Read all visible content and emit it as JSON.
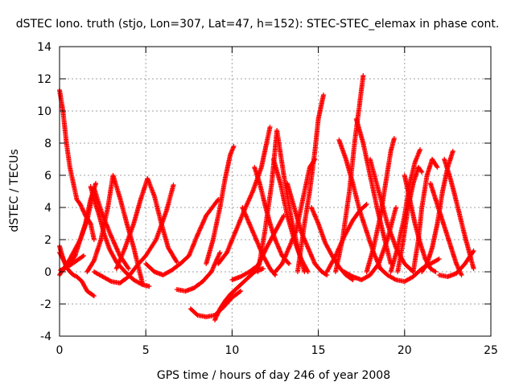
{
  "chart_data": {
    "type": "scatter",
    "title": "dSTEC Iono. truth (stjo, Lon=307, Lat=47, h=152): STEC-STEC_elemax in phase cont.",
    "xlabel": "GPS time / hours of day 246 of year 2008",
    "ylabel": "dSTEC  / TECUs",
    "xlim": [
      0,
      25
    ],
    "ylim": [
      -4,
      14
    ],
    "x_ticks": [
      0,
      5,
      10,
      15,
      20,
      25
    ],
    "y_ticks": [
      -4,
      -2,
      0,
      2,
      4,
      6,
      8,
      10,
      12,
      14
    ],
    "grid": true,
    "legend": "none",
    "marker": "plus",
    "color": "#ff0000",
    "series": [
      {
        "x": [
          0.0,
          0.1,
          0.25,
          0.4,
          0.6,
          0.8,
          1.0,
          1.3,
          1.6,
          2.0
        ],
        "y": [
          1.6,
          1.2,
          0.7,
          0.3,
          0.0,
          -0.2,
          -0.3,
          -0.6,
          -1.2,
          -1.5
        ]
      },
      {
        "x": [
          0.0,
          0.2,
          0.4,
          0.6,
          0.8,
          1.0,
          1.2,
          1.5,
          1.8,
          2.0
        ],
        "y": [
          11.3,
          10.0,
          8.0,
          6.5,
          5.5,
          4.5,
          4.2,
          3.5,
          3.0,
          2.0
        ]
      },
      {
        "x": [
          0.05,
          0.3,
          0.6,
          0.9,
          1.2,
          1.5,
          1.8,
          2.1
        ],
        "y": [
          0.1,
          0.2,
          0.5,
          1.0,
          2.0,
          3.0,
          4.5,
          5.5
        ]
      },
      {
        "x": [
          0.0,
          0.3,
          0.6,
          1.0,
          1.4
        ],
        "y": [
          1.2,
          0.6,
          0.4,
          0.7,
          1.0
        ]
      },
      {
        "x": [
          0.0,
          0.6,
          1.2,
          1.6,
          2.0,
          2.5,
          3.0,
          3.5,
          4.0
        ],
        "y": [
          -0.2,
          0.8,
          2.0,
          3.2,
          5.2,
          3.5,
          2.2,
          1.0,
          0.2
        ]
      },
      {
        "x": [
          1.8,
          2.0,
          2.3,
          2.6,
          2.9,
          3.3,
          3.8,
          4.3,
          4.8,
          5.2
        ],
        "y": [
          5.3,
          4.5,
          3.5,
          2.3,
          1.4,
          0.6,
          0.0,
          -0.5,
          -0.8,
          -0.9
        ]
      },
      {
        "x": [
          1.6,
          2.0,
          2.4,
          2.8,
          3.1,
          3.5,
          3.9,
          4.3,
          4.8
        ],
        "y": [
          0.0,
          0.7,
          2.0,
          4.0,
          6.0,
          4.6,
          3.0,
          1.5,
          -0.7
        ]
      },
      {
        "x": [
          2.0,
          2.5,
          3.0,
          3.5,
          4.0,
          4.5,
          5.0,
          5.6,
          6.2,
          6.6
        ],
        "y": [
          0.0,
          -0.3,
          -0.6,
          -0.7,
          -0.3,
          0.4,
          1.0,
          2.0,
          3.8,
          5.4
        ]
      },
      {
        "x": [
          3.3,
          3.8,
          4.3,
          4.7,
          5.1,
          5.5,
          5.9,
          6.3,
          6.8
        ],
        "y": [
          0.2,
          1.5,
          3.0,
          4.5,
          5.8,
          4.7,
          3.0,
          1.5,
          0.6
        ]
      },
      {
        "x": [
          5.0,
          5.5,
          6.0,
          6.5,
          7.0,
          7.5,
          8.0,
          8.5,
          9.2
        ],
        "y": [
          0.5,
          0.0,
          -0.2,
          0.1,
          0.5,
          1.0,
          2.3,
          3.5,
          4.5
        ]
      },
      {
        "x": [
          6.8,
          7.3,
          7.8,
          8.3,
          8.8,
          9.3
        ],
        "y": [
          -1.1,
          -1.2,
          -1.0,
          -0.6,
          0.0,
          1.2
        ]
      },
      {
        "x": [
          7.6,
          8.0,
          8.5,
          9.0,
          9.5,
          10.0,
          10.5
        ],
        "y": [
          -2.3,
          -2.7,
          -2.8,
          -2.7,
          -2.2,
          -1.6,
          -1.2
        ]
      },
      {
        "x": [
          9.0,
          9.3,
          9.6,
          9.9,
          10.3,
          10.8,
          11.3,
          11.8
        ],
        "y": [
          -3.0,
          -2.3,
          -1.8,
          -1.4,
          -1.0,
          -0.5,
          0.0,
          0.2
        ]
      },
      {
        "x": [
          8.5,
          8.9,
          9.3,
          9.6,
          9.9,
          10.1
        ],
        "y": [
          0.5,
          2.0,
          4.0,
          5.8,
          7.3,
          7.8
        ]
      },
      {
        "x": [
          9.2,
          9.7,
          10.2,
          10.7,
          11.2,
          11.7,
          12.0,
          12.2
        ],
        "y": [
          0.5,
          1.2,
          2.5,
          3.8,
          5.0,
          6.5,
          8.0,
          9.0
        ]
      },
      {
        "x": [
          10.0,
          10.5,
          11.0,
          11.5,
          12.0,
          12.5,
          13.0
        ],
        "y": [
          -0.5,
          -0.3,
          0.0,
          0.4,
          1.5,
          2.5,
          3.5
        ]
      },
      {
        "x": [
          10.6,
          11.0,
          11.4,
          11.8,
          12.2,
          12.5
        ],
        "y": [
          4.0,
          3.0,
          2.0,
          1.0,
          0.2,
          -0.2
        ]
      },
      {
        "x": [
          11.3,
          11.6,
          11.9,
          12.2,
          12.5,
          12.9,
          13.3
        ],
        "y": [
          6.5,
          5.5,
          4.2,
          3.0,
          2.0,
          1.0,
          0.5
        ]
      },
      {
        "x": [
          11.5,
          11.9,
          12.3,
          12.6,
          13.0,
          13.4,
          13.8,
          14.2
        ],
        "y": [
          0.0,
          2.5,
          5.5,
          8.8,
          6.0,
          3.5,
          1.5,
          0.0
        ]
      },
      {
        "x": [
          12.4,
          12.8,
          13.2,
          13.6,
          14.0,
          14.4
        ],
        "y": [
          7.0,
          5.5,
          3.5,
          2.0,
          0.8,
          0.0
        ]
      },
      {
        "x": [
          12.5,
          12.9,
          13.3,
          13.7,
          14.1,
          14.5,
          14.8
        ],
        "y": [
          0.0,
          0.5,
          1.5,
          2.5,
          4.5,
          6.5,
          7.0
        ]
      },
      {
        "x": [
          13.2,
          13.6,
          14.0,
          14.4,
          14.8,
          15.2,
          15.5
        ],
        "y": [
          5.5,
          4.0,
          2.5,
          1.5,
          0.5,
          0.0,
          -0.2
        ]
      },
      {
        "x": [
          13.8,
          14.2,
          14.5,
          14.8,
          15.0,
          15.3
        ],
        "y": [
          0.0,
          3.0,
          5.0,
          7.5,
          9.5,
          11.0
        ]
      },
      {
        "x": [
          14.6,
          15.0,
          15.4,
          15.8,
          16.2,
          16.6,
          17.0
        ],
        "y": [
          4.0,
          3.0,
          1.8,
          1.0,
          0.3,
          -0.2,
          -0.5
        ]
      },
      {
        "x": [
          15.5,
          16.0,
          16.5,
          17.0,
          17.4,
          17.8
        ],
        "y": [
          0.0,
          1.0,
          2.2,
          3.2,
          3.8,
          4.2
        ]
      },
      {
        "x": [
          16.0,
          16.4,
          16.8,
          17.1,
          17.4,
          17.6
        ],
        "y": [
          0.0,
          2.0,
          5.0,
          8.0,
          10.5,
          12.2
        ]
      },
      {
        "x": [
          16.2,
          16.6,
          17.0,
          17.4,
          17.8,
          18.2,
          18.6
        ],
        "y": [
          8.2,
          7.0,
          5.5,
          3.8,
          2.5,
          1.2,
          0.2
        ]
      },
      {
        "x": [
          16.5,
          17.0,
          17.5,
          18.0,
          18.5,
          19.0,
          19.5
        ],
        "y": [
          0.0,
          -0.3,
          -0.5,
          -0.2,
          0.5,
          2.0,
          4.0
        ]
      },
      {
        "x": [
          17.2,
          17.6,
          18.0,
          18.4,
          18.8,
          19.2
        ],
        "y": [
          9.5,
          8.0,
          6.0,
          4.0,
          2.2,
          0.5
        ]
      },
      {
        "x": [
          17.8,
          18.2,
          18.6,
          18.9,
          19.2,
          19.4
        ],
        "y": [
          0.0,
          1.5,
          3.5,
          5.5,
          7.5,
          8.3
        ]
      },
      {
        "x": [
          18.0,
          18.5,
          19.0,
          19.5,
          20.0,
          20.5
        ],
        "y": [
          7.0,
          5.0,
          3.0,
          1.5,
          0.5,
          0.0
        ]
      },
      {
        "x": [
          18.5,
          19.0,
          19.5,
          20.0,
          20.5,
          21.0,
          21.5,
          22.0
        ],
        "y": [
          0.3,
          -0.2,
          -0.5,
          -0.6,
          -0.3,
          0.2,
          0.5,
          0.8
        ]
      },
      {
        "x": [
          19.2,
          19.6,
          20.0,
          20.3,
          20.6,
          20.9
        ],
        "y": [
          0.0,
          1.5,
          3.5,
          5.5,
          6.8,
          7.6
        ]
      },
      {
        "x": [
          19.6,
          19.9,
          20.2,
          20.5,
          20.8,
          21.0
        ],
        "y": [
          0.0,
          1.8,
          4.0,
          5.5,
          6.5,
          6.2
        ]
      },
      {
        "x": [
          20.0,
          20.3,
          20.6,
          20.9,
          21.2,
          21.5,
          21.8
        ],
        "y": [
          6.0,
          4.5,
          3.0,
          1.8,
          0.8,
          0.2,
          0.0
        ]
      },
      {
        "x": [
          20.5,
          20.8,
          21.0,
          21.3,
          21.6,
          21.9
        ],
        "y": [
          0.0,
          2.0,
          4.0,
          6.0,
          7.0,
          6.5
        ]
      },
      {
        "x": [
          21.0,
          21.3,
          21.6,
          21.9,
          22.2,
          22.5,
          22.8
        ],
        "y": [
          0.0,
          0.5,
          1.5,
          3.0,
          5.0,
          6.5,
          7.5
        ]
      },
      {
        "x": [
          21.5,
          21.8,
          22.1,
          22.4,
          22.7,
          23.0,
          23.3
        ],
        "y": [
          5.5,
          4.5,
          3.5,
          2.5,
          1.5,
          0.5,
          -0.2
        ]
      },
      {
        "x": [
          22.3,
          22.6,
          22.9,
          23.2,
          23.5,
          23.8,
          24.0
        ],
        "y": [
          7.0,
          6.0,
          4.8,
          3.5,
          2.2,
          1.0,
          0.2
        ]
      },
      {
        "x": [
          22.0,
          22.5,
          23.0,
          23.5,
          24.0
        ],
        "y": [
          -0.2,
          -0.3,
          -0.1,
          0.5,
          1.3
        ]
      }
    ]
  }
}
